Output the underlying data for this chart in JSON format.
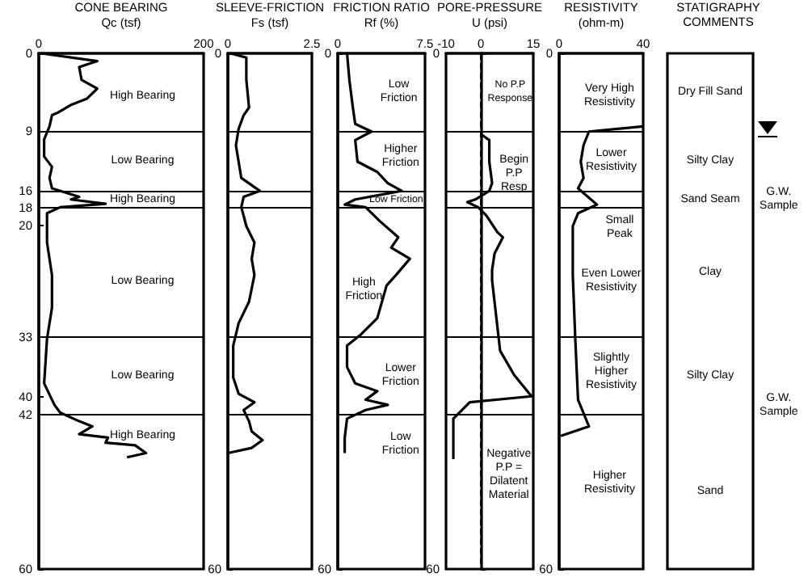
{
  "chart_data": [
    {
      "type": "line",
      "title": "CONE BEARING",
      "xlabel": "Qc (tsf)",
      "xlim": [
        0,
        200
      ],
      "xticks": [
        0,
        200
      ],
      "ylim": [
        60,
        0
      ],
      "yticks": [
        0,
        9,
        16,
        18,
        20,
        33,
        40,
        42,
        60
      ],
      "grid": false,
      "marker": "none",
      "line_style": "solid",
      "series": [
        {
          "color": "#000000",
          "x": [
            3,
            71,
            49,
            52,
            71,
            58,
            39,
            23,
            16,
            13,
            6.5,
            6.5,
            16,
            13,
            16,
            49,
            39,
            81,
            26,
            10,
            10,
            16,
            16,
            10,
            6.5,
            19,
            26,
            49,
            65,
            49,
            84,
            81,
            117,
            130,
            107
          ],
          "values": [
            0,
            0.9,
            1.6,
            3.1,
            4.1,
            5.3,
            6,
            6.9,
            7.2,
            8.5,
            10,
            12,
            13.2,
            14.5,
            15.7,
            16.7,
            17,
            17.5,
            17.9,
            18.6,
            22,
            25.8,
            29.6,
            33.2,
            38.4,
            40.9,
            41.8,
            42.8,
            43.4,
            44.3,
            44.7,
            45.3,
            45.6,
            46.5,
            47
          ]
        }
      ],
      "ref_lines": [
        {
          "axis": "y",
          "value": 9
        },
        {
          "axis": "y",
          "value": 16
        },
        {
          "axis": "y",
          "value": 18
        },
        {
          "axis": "y",
          "value": 33
        },
        {
          "axis": "y",
          "value": 42
        }
      ],
      "annotations": [
        "High Bearing",
        "Low Bearing",
        "High Bearing",
        "Low Bearing",
        "Low Bearing",
        "High Bearing"
      ]
    },
    {
      "type": "line",
      "title": "SLEEVE-FRICTION",
      "xlabel": "Fs (tsf)",
      "xlim": [
        0,
        2.5
      ],
      "xticks": [
        0,
        2.5
      ],
      "ylim": [
        60,
        0
      ],
      "yticks": [
        0,
        60
      ],
      "grid": false,
      "marker": "none",
      "line_style": "solid",
      "series": [
        {
          "color": "#000000",
          "x": [
            0.08,
            0.55,
            0.55,
            0.63,
            0.47,
            0.32,
            0.24,
            0.32,
            0.4,
            0.95,
            0.47,
            0.4,
            0.47,
            0.55,
            0.79,
            0.71,
            0.79,
            0.63,
            0.32,
            0.16,
            0.16,
            0.32,
            0.79,
            0.47,
            0.63,
            0.71,
            1.03,
            0.71,
            0
          ],
          "values": [
            0,
            0.5,
            3.1,
            6.3,
            7.2,
            8.8,
            10.7,
            12.6,
            14.5,
            16,
            16.7,
            17.9,
            18.9,
            20.1,
            22,
            23.9,
            25.8,
            28.9,
            31.4,
            34,
            37.7,
            39.6,
            40.6,
            41.5,
            42.8,
            44,
            45,
            45.9,
            46.5
          ]
        }
      ],
      "ref_lines": [
        {
          "axis": "y",
          "value": 9
        },
        {
          "axis": "y",
          "value": 16
        },
        {
          "axis": "y",
          "value": 18
        },
        {
          "axis": "y",
          "value": 33
        },
        {
          "axis": "y",
          "value": 42
        }
      ]
    },
    {
      "type": "line",
      "title": "FRICTION RATIO",
      "xlabel": "Rf (%)",
      "xlim": [
        0,
        7.5
      ],
      "xticks": [
        0,
        7.5
      ],
      "ylim": [
        60,
        0
      ],
      "yticks": [
        0,
        60
      ],
      "grid": false,
      "marker": "none",
      "line_style": "solid",
      "series": [
        {
          "color": "#000000",
          "x": [
            0.8,
            1.0,
            1.3,
            1.5,
            2.9,
            1.5,
            1.7,
            3.4,
            4.3,
            5.5,
            1.5,
            0.6,
            2.4,
            3.6,
            5.2,
            4.6,
            6.2,
            5.0,
            4.2,
            3.4,
            2.0,
            0.8,
            0.8,
            1.5,
            3.4,
            2.4,
            4.3,
            2.4,
            0.8,
            0.6,
            0.6
          ],
          "values": [
            0,
            3.1,
            6.3,
            8.2,
            9.1,
            10.1,
            12.6,
            13.8,
            15.1,
            16,
            17,
            17.6,
            17.9,
            19.5,
            21.4,
            22.6,
            23.9,
            25.8,
            27,
            30.8,
            32.7,
            34,
            36.5,
            38.4,
            39.3,
            40.3,
            40.9,
            41.5,
            42.5,
            44.7,
            46.5
          ]
        }
      ],
      "ref_lines": [
        {
          "axis": "y",
          "value": 9
        },
        {
          "axis": "y",
          "value": 16
        },
        {
          "axis": "y",
          "value": 18
        },
        {
          "axis": "y",
          "value": 33
        },
        {
          "axis": "y",
          "value": 42
        }
      ],
      "annotations": [
        "Low\nFriction",
        "Higher\nFriction",
        "Low Friction",
        "High\nFriction",
        "Lower\nFriction",
        "Low\nFriction"
      ]
    },
    {
      "type": "line",
      "title": "PORE-PRESSURE",
      "xlabel": "U (psi)",
      "xlim": [
        -10,
        15
      ],
      "xticks": [
        -10,
        0,
        15
      ],
      "ylim": [
        60,
        0
      ],
      "yticks": [
        0,
        60
      ],
      "grid": false,
      "marker": "none",
      "line_style": "solid",
      "series": [
        {
          "color": "#000000",
          "x": [
            0,
            2.4,
            2.4,
            3.2,
            2.4,
            -1.6,
            -3.9,
            -0.8,
            1.6,
            4.7,
            6.3,
            3.9,
            3.2,
            3.2,
            5.5,
            9.5,
            14.5,
            -3.2,
            -7.9,
            -7.9
          ],
          "values": [
            9.4,
            10.1,
            12.6,
            15.1,
            16,
            17,
            17.3,
            17.9,
            18.9,
            20.8,
            21.4,
            23.3,
            25.2,
            26.4,
            34.6,
            37.4,
            39.9,
            40.6,
            42.5,
            47.2
          ]
        }
      ],
      "ref_lines": [
        {
          "axis": "y",
          "value": 9
        },
        {
          "axis": "y",
          "value": 16
        },
        {
          "axis": "y",
          "value": 18
        },
        {
          "axis": "y",
          "value": 33
        },
        {
          "axis": "y",
          "value": 42
        },
        {
          "axis": "x",
          "value": 0,
          "line_style": "dashed"
        }
      ],
      "annotations": [
        "No P.P\nResponse",
        "Begin\nP.P\nResp",
        "Negative\nP.P =\nDilatent\nMaterial"
      ]
    },
    {
      "type": "line",
      "title": "RESISTIVITY",
      "xlabel": "(ohm-m)",
      "xlim": [
        0,
        40
      ],
      "xticks": [
        0,
        40
      ],
      "ylim": [
        60,
        0
      ],
      "yticks": [
        0,
        60
      ],
      "grid": false,
      "marker": "none",
      "line_style": "solid",
      "series": [
        {
          "color": "#000000",
          "x": [
            40,
            14.2,
            11.6,
            10.3,
            11.6,
            9,
            18,
            9,
            6.5,
            6.5,
            7.7,
            9,
            14.2,
            0.8
          ],
          "values": [
            8.5,
            9.1,
            10.7,
            12.6,
            14.5,
            15.7,
            17.6,
            18.6,
            20.1,
            25.8,
            33.3,
            40.3,
            43.4,
            44.5
          ]
        }
      ],
      "ref_lines": [
        {
          "axis": "y",
          "value": 9
        },
        {
          "axis": "y",
          "value": 16
        },
        {
          "axis": "y",
          "value": 18
        },
        {
          "axis": "y",
          "value": 33
        },
        {
          "axis": "y",
          "value": 42
        }
      ],
      "annotations": [
        "Very High\nResistivity",
        "Lower\nResistivity",
        "Small\nPeak",
        "Even Lower\nResistivity",
        "Slightly\nHigher\nResistivity",
        "Higher\nResistivity"
      ]
    },
    {
      "type": "other",
      "title": "STATIGRAPHY\nCOMMENTS",
      "annotations": [
        "Dry Fill Sand",
        "Silty Clay",
        "Sand Seam",
        "Clay",
        "Silty Clay",
        "Sand",
        "G.W.\nSample",
        "G.W.\nSample"
      ]
    }
  ]
}
